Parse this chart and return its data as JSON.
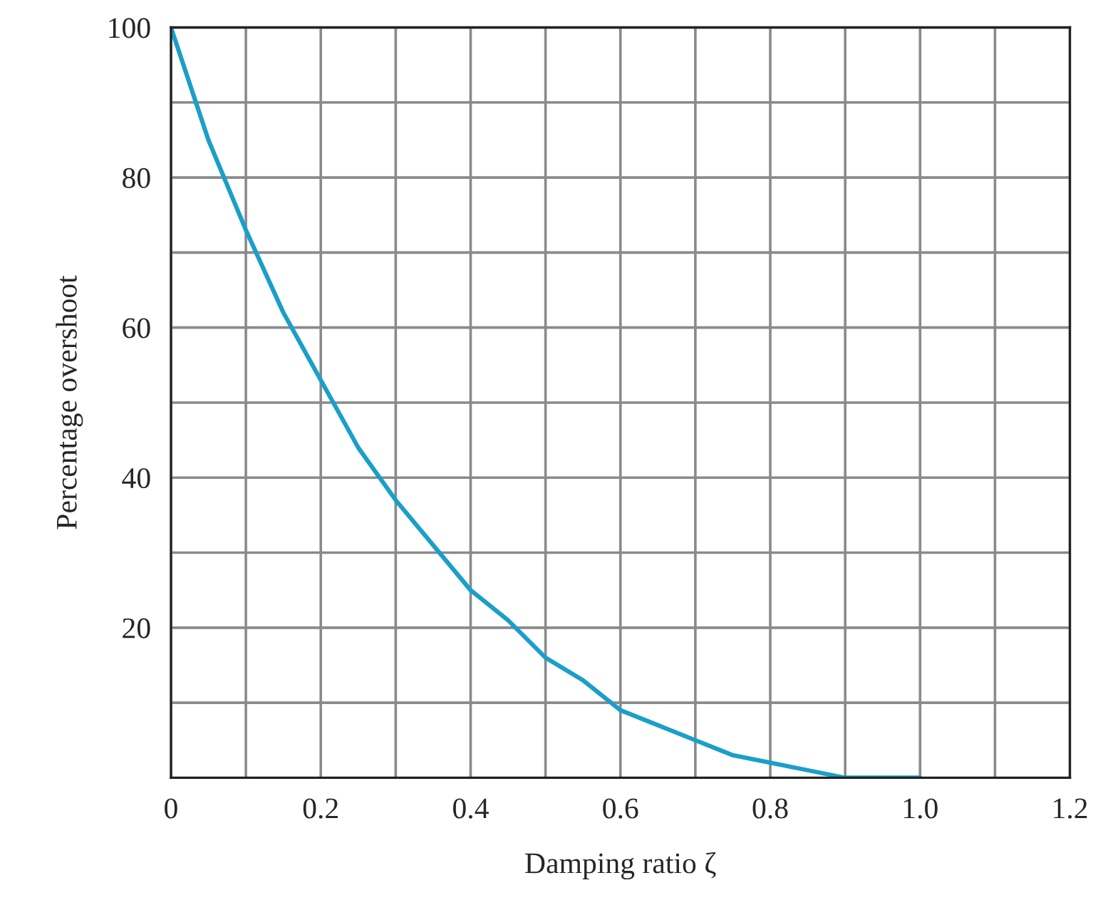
{
  "chart_data": {
    "type": "line",
    "xlabel": "Damping ratio ζ",
    "ylabel": "Percentage overshoot",
    "x": [
      0,
      0.05,
      0.1,
      0.15,
      0.2,
      0.25,
      0.3,
      0.35,
      0.4,
      0.45,
      0.5,
      0.55,
      0.6,
      0.65,
      0.7,
      0.75,
      0.8,
      0.85,
      0.9,
      0.95,
      1.0
    ],
    "series": [
      {
        "color": "#1a9fc9",
        "values": [
          100,
          85,
          73,
          62,
          53,
          44,
          37,
          31,
          25,
          21,
          16,
          13,
          9,
          7,
          5,
          3,
          2,
          1,
          0,
          0,
          0
        ]
      }
    ],
    "xlim": [
      0,
      1.2
    ],
    "ylim": [
      0,
      100
    ],
    "xticks": [
      {
        "value": 0,
        "label": "0"
      },
      {
        "value": 0.1,
        "label": null
      },
      {
        "value": 0.2,
        "label": "0.2"
      },
      {
        "value": 0.3,
        "label": null
      },
      {
        "value": 0.4,
        "label": "0.4"
      },
      {
        "value": 0.5,
        "label": null
      },
      {
        "value": 0.6,
        "label": "0.6"
      },
      {
        "value": 0.7,
        "label": null
      },
      {
        "value": 0.8,
        "label": "0.8"
      },
      {
        "value": 0.9,
        "label": null
      },
      {
        "value": 1.0,
        "label": "1.0"
      },
      {
        "value": 1.1,
        "label": null
      },
      {
        "value": 1.2,
        "label": "1.2"
      }
    ],
    "yticks": [
      {
        "value": 10,
        "label": null
      },
      20,
      {
        "value": 30,
        "label": null
      },
      40,
      {
        "value": 50,
        "label": null
      },
      60,
      {
        "value": 70,
        "label": null
      },
      80,
      {
        "value": 90,
        "label": null
      },
      100
    ],
    "grid": true,
    "marker": "none",
    "line_style": "solid",
    "legend": false
  }
}
